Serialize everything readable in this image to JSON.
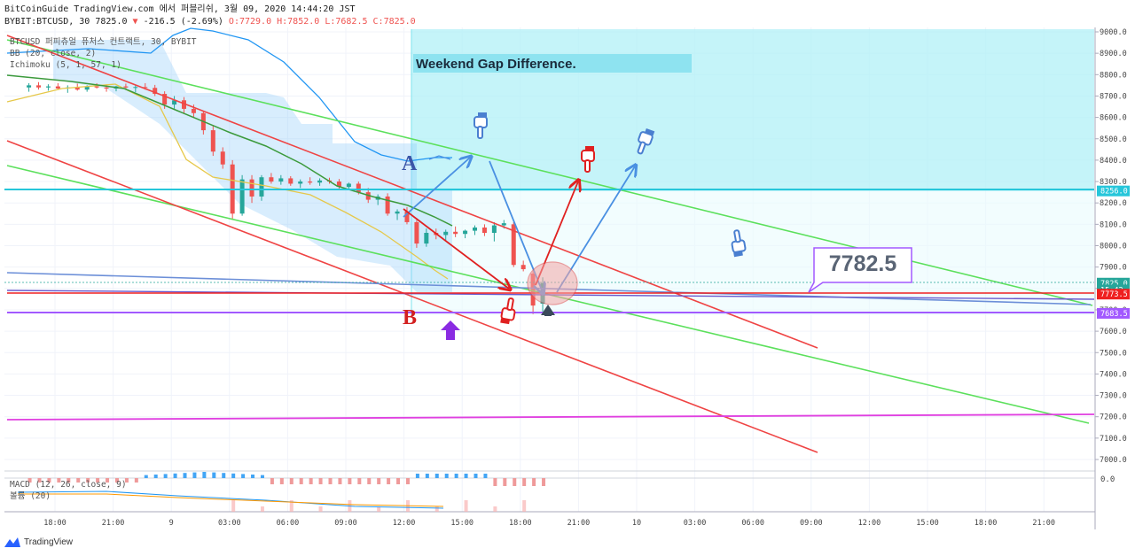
{
  "header": {
    "line1": "BitCoinGuide TradingView.com 에서 퍼블리쉬, 3월 09, 2020 14:44:20 JST",
    "symbol": "BYBIT:BTCUSD, 30",
    "last": "7825.0",
    "change": "-216.5 (-2.69%)",
    "ohlc": {
      "o": "O:7729.0",
      "h": "H:7852.0",
      "l": "L:7682.5",
      "c": "C:7825.0"
    }
  },
  "indicators": [
    "BTCUSD 퍼피츄얼 퓨처스 컨트랙트, 30, BYBIT",
    "BB (20, close, 2)",
    "Ichimoku (5, 1, 57, 1)"
  ],
  "macd_label": [
    "MACD (12, 26, close, 9)",
    "볼륨 (20)"
  ],
  "macd_axis": "0.0",
  "watermark": "TradingView",
  "annotations": {
    "box_title": "Weekend Gap Difference.",
    "callout": "7782.5",
    "label_a": "A",
    "label_b": "B"
  },
  "colors": {
    "bull": "#26a69a",
    "bear": "#ef5350",
    "cyan_zone": "#b2ebf2",
    "green_channel": "#5ce05c",
    "red_channel": "#ef4444",
    "purple": "#a259ff",
    "blue": "#4a90e2"
  },
  "chart_data": {
    "type": "candlestick",
    "price_axis": {
      "ticks": [
        9000,
        8900,
        8800,
        8700,
        8600,
        8500,
        8400,
        8300,
        8200,
        8100,
        8000,
        7900,
        7800,
        7700,
        7600,
        7500,
        7400,
        7300,
        7200,
        7100,
        7000
      ],
      "labels": [
        "9000.0",
        "8900.0",
        "8800.0",
        "8700.0",
        "8600.0",
        "8500.0",
        "8400.0",
        "8300.0",
        "8200.0",
        "8100.0",
        "8000.0",
        "7900.0",
        "7800.0",
        "7700.0",
        "7600.0",
        "7500.0",
        "7400.0",
        "7300.0",
        "7200.0",
        "7100.0",
        "7000.0"
      ]
    },
    "price_tags": [
      {
        "value": 8256.0,
        "label": "8256.0",
        "color": "#26c6da"
      },
      {
        "value": 7825.0,
        "label": "7825.0",
        "color": "#26a69a"
      },
      {
        "value": 7793,
        "label": "15:42",
        "color": "#26a69a"
      },
      {
        "value": 7773.5,
        "label": "7773.5",
        "color": "#ef2020"
      },
      {
        "value": 7683.5,
        "label": "7683.5",
        "color": "#a259ff"
      }
    ],
    "time_axis": {
      "labels": [
        "18:00",
        "21:00",
        "9",
        "03:00",
        "06:00",
        "09:00",
        "12:00",
        "15:00",
        "18:00",
        "21:00",
        "10",
        "03:00",
        "06:00",
        "09:00",
        "12:00",
        "15:00",
        "18:00",
        "21:00"
      ],
      "start_hour": 16.2,
      "hours_per_label": 3
    },
    "candles": [
      [
        8740,
        8760,
        8720,
        8750
      ],
      [
        8750,
        8765,
        8730,
        8740
      ],
      [
        8740,
        8755,
        8725,
        8745
      ],
      [
        8745,
        8760,
        8730,
        8735
      ],
      [
        8735,
        8750,
        8715,
        8740
      ],
      [
        8740,
        8758,
        8725,
        8730
      ],
      [
        8730,
        8750,
        8720,
        8745
      ],
      [
        8745,
        8760,
        8735,
        8740
      ],
      [
        8740,
        8755,
        8720,
        8735
      ],
      [
        8735,
        8748,
        8722,
        8745
      ],
      [
        8745,
        8758,
        8730,
        8740
      ],
      [
        8740,
        8750,
        8718,
        8742
      ],
      [
        8742,
        8760,
        8730,
        8738
      ],
      [
        8738,
        8752,
        8700,
        8710
      ],
      [
        8710,
        8722,
        8640,
        8660
      ],
      [
        8660,
        8700,
        8640,
        8680
      ],
      [
        8680,
        8695,
        8620,
        8640
      ],
      [
        8640,
        8660,
        8600,
        8620
      ],
      [
        8620,
        8630,
        8520,
        8540
      ],
      [
        8540,
        8560,
        8420,
        8440
      ],
      [
        8440,
        8460,
        8360,
        8380
      ],
      [
        8380,
        8400,
        8120,
        8150
      ],
      [
        8150,
        8330,
        8140,
        8310
      ],
      [
        8310,
        8330,
        8200,
        8230
      ],
      [
        8230,
        8330,
        8210,
        8320
      ],
      [
        8320,
        8340,
        8290,
        8300
      ],
      [
        8300,
        8330,
        8285,
        8315
      ],
      [
        8315,
        8325,
        8280,
        8290
      ],
      [
        8290,
        8310,
        8270,
        8300
      ],
      [
        8300,
        8320,
        8285,
        8295
      ],
      [
        8295,
        8315,
        8280,
        8305
      ],
      [
        8305,
        8318,
        8290,
        8300
      ],
      [
        8300,
        8312,
        8265,
        8275
      ],
      [
        8275,
        8295,
        8260,
        8290
      ],
      [
        8290,
        8300,
        8240,
        8250
      ],
      [
        8250,
        8270,
        8200,
        8215
      ],
      [
        8215,
        8240,
        8190,
        8230
      ],
      [
        8230,
        8245,
        8140,
        8150
      ],
      [
        8150,
        8170,
        8120,
        8160
      ],
      [
        8160,
        8180,
        8100,
        8110
      ],
      [
        8110,
        8120,
        7990,
        8010
      ],
      [
        8010,
        8080,
        7995,
        8060
      ],
      [
        8060,
        8080,
        8030,
        8050
      ],
      [
        8050,
        8075,
        8020,
        8065
      ],
      [
        8065,
        8090,
        8040,
        8055
      ],
      [
        8055,
        8075,
        8035,
        8070
      ],
      [
        8070,
        8095,
        8050,
        8085
      ],
      [
        8085,
        8100,
        8045,
        8060
      ],
      [
        8060,
        8110,
        8020,
        8095
      ],
      [
        8095,
        8120,
        8080,
        8105
      ],
      [
        8100,
        8110,
        7900,
        7910
      ],
      [
        7910,
        7930,
        7880,
        7890
      ],
      [
        7870,
        7880,
        7680,
        7720
      ],
      [
        7729,
        7852,
        7682.5,
        7825
      ]
    ],
    "candle_start_hour": 16.45,
    "candle_interval_hours": 0.5
  }
}
